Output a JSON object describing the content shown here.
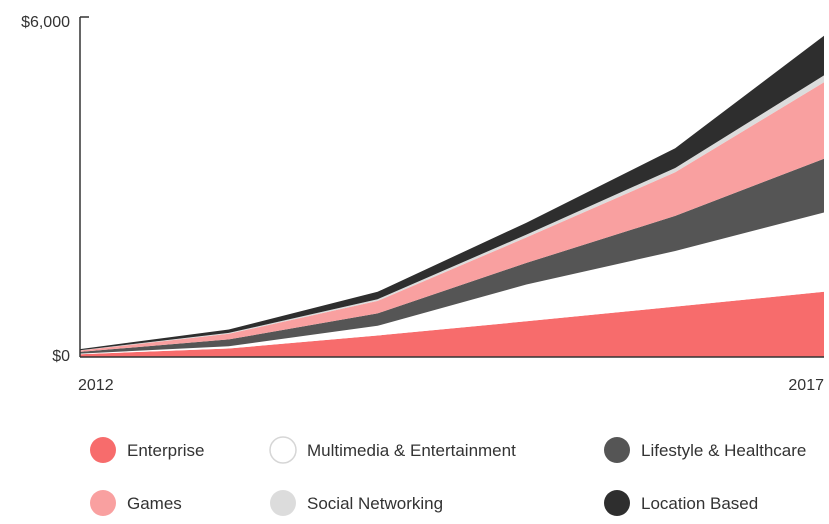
{
  "chart_data": {
    "type": "area",
    "stacked": true,
    "x": [
      "2012",
      "2013",
      "2014",
      "2015",
      "2016",
      "2017"
    ],
    "ylim": [
      0,
      6000
    ],
    "y_ticks": [
      "$0",
      "$6,000"
    ],
    "x_ticks": [
      "2012",
      "2017"
    ],
    "grid": false,
    "legend_position": "bottom",
    "series": [
      {
        "name": "Enterprise",
        "color": "#f76c6c",
        "values": [
          50,
          150,
          380,
          630,
          890,
          1150
        ]
      },
      {
        "name": "Multimedia & Entertainment",
        "color": "#ffffff",
        "outlined": true,
        "values": [
          10,
          40,
          170,
          650,
          980,
          1400
        ]
      },
      {
        "name": "Lifestyle & Healthcare",
        "color": "#555555",
        "values": [
          30,
          120,
          220,
          380,
          620,
          950
        ]
      },
      {
        "name": "Games",
        "color": "#f9a0a0",
        "values": [
          25,
          100,
          220,
          450,
          770,
          1350
        ]
      },
      {
        "name": "Social Networking",
        "color": "#dcdcdc",
        "values": [
          5,
          15,
          30,
          50,
          75,
          120
        ]
      },
      {
        "name": "Location Based",
        "color": "#2e2e2e",
        "values": [
          20,
          60,
          130,
          210,
          350,
          700
        ]
      }
    ]
  }
}
